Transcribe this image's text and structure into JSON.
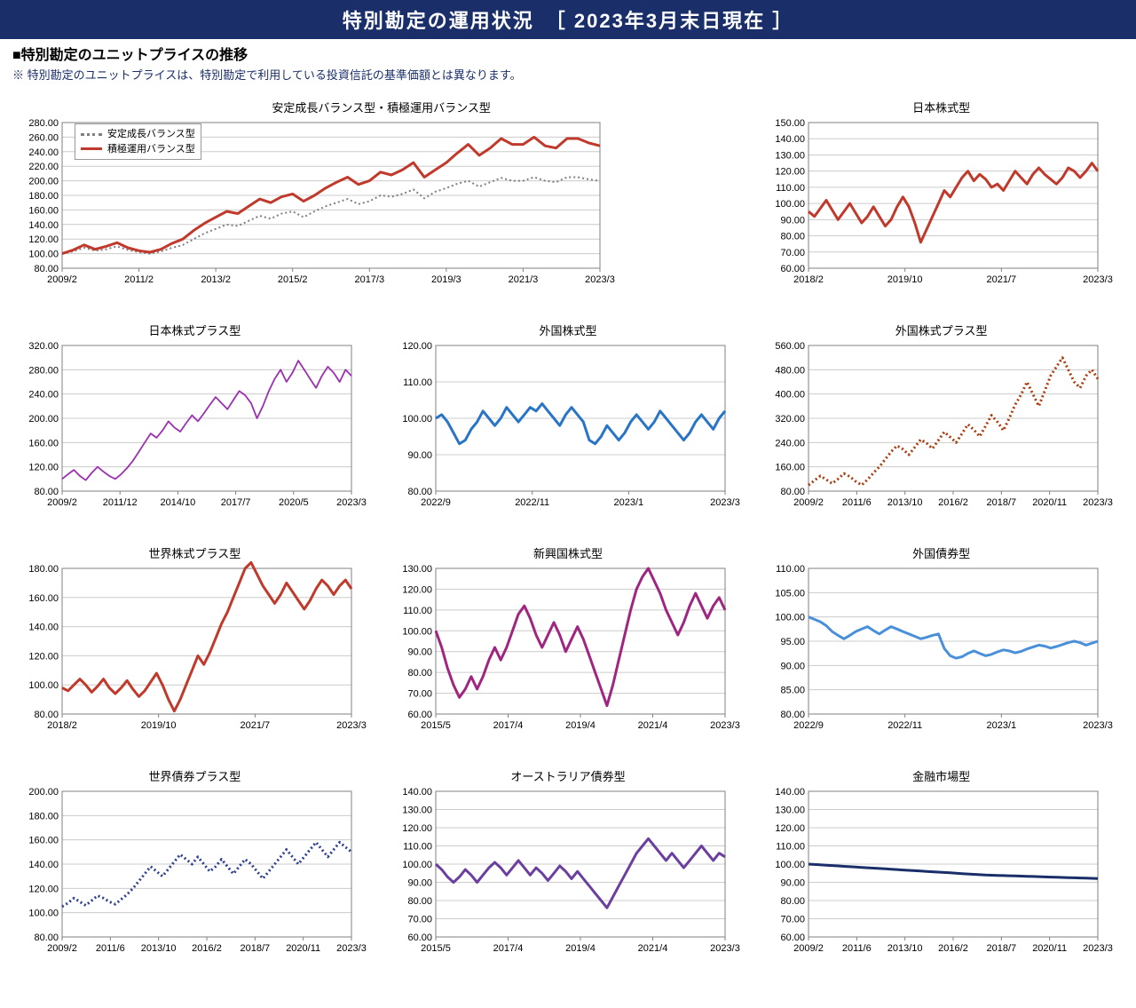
{
  "banner": "特別勘定の運用状況　［ 2023年3月末日現在 ］",
  "subhead": "■特別勘定のユニットプライスの推移",
  "note": "※ 特別勘定のユニットプライスは、特別勘定で利用している投資信託の基準価額とは異なります。",
  "colors": {
    "banner_bg": "#1a2f6a",
    "grid": "#cccccc",
    "axis": "#808080"
  },
  "charts": [
    {
      "id": "c1",
      "title": "安定成長バランス型・積極運用バランス型",
      "span": 2,
      "ylim": [
        80,
        280
      ],
      "ystep": 20,
      "xticks": [
        "2009/2",
        "2011/2",
        "2013/2",
        "2015/2",
        "2017/3",
        "2019/3",
        "2021/3",
        "2023/3"
      ],
      "legend": [
        {
          "label": "安定成長バランス型",
          "color": "#7f7f7f",
          "style": "dotted"
        },
        {
          "label": "積極運用バランス型",
          "color": "#c0392b",
          "style": "solid"
        }
      ],
      "series": [
        {
          "color": "#7f7f7f",
          "width": 2,
          "style": "dotted",
          "data": [
            100,
            103,
            108,
            104,
            106,
            110,
            105,
            102,
            100,
            103,
            108,
            112,
            120,
            128,
            134,
            140,
            138,
            145,
            152,
            148,
            155,
            158,
            150,
            158,
            165,
            170,
            175,
            168,
            172,
            180,
            178,
            182,
            188,
            176,
            185,
            190,
            196,
            200,
            192,
            198,
            204,
            200,
            200,
            205,
            200,
            198,
            205,
            205,
            202,
            200
          ]
        },
        {
          "color": "#c0392b",
          "width": 3,
          "style": "solid",
          "data": [
            100,
            105,
            112,
            106,
            110,
            115,
            108,
            104,
            102,
            106,
            114,
            120,
            132,
            142,
            150,
            158,
            155,
            165,
            175,
            170,
            178,
            182,
            172,
            180,
            190,
            198,
            205,
            195,
            200,
            212,
            208,
            215,
            225,
            205,
            215,
            225,
            238,
            250,
            235,
            245,
            258,
            250,
            250,
            260,
            248,
            245,
            258,
            258,
            252,
            248
          ]
        }
      ]
    },
    {
      "id": "c2",
      "title": "日本株式型",
      "span": 1,
      "ylim": [
        60,
        150
      ],
      "ystep": 10,
      "xticks": [
        "2018/2",
        "2019/10",
        "2021/7",
        "2023/3"
      ],
      "series": [
        {
          "color": "#c0392b",
          "width": 3,
          "style": "solid",
          "data": [
            95,
            92,
            97,
            102,
            96,
            90,
            95,
            100,
            94,
            88,
            92,
            98,
            92,
            86,
            90,
            98,
            104,
            98,
            88,
            76,
            84,
            92,
            100,
            108,
            104,
            110,
            116,
            120,
            114,
            118,
            115,
            110,
            112,
            108,
            114,
            120,
            116,
            112,
            118,
            122,
            118,
            115,
            112,
            116,
            122,
            120,
            116,
            120,
            125,
            120
          ]
        }
      ]
    },
    {
      "id": "c3",
      "title": "日本株式プラス型",
      "span": 1,
      "ylim": [
        80,
        320
      ],
      "ystep": 40,
      "xticks": [
        "2009/2",
        "2011/12",
        "2014/10",
        "2017/7",
        "2020/5",
        "2023/3"
      ],
      "series": [
        {
          "color": "#9b30b0",
          "width": 1.8,
          "style": "solid",
          "data": [
            100,
            108,
            115,
            105,
            98,
            110,
            120,
            112,
            105,
            100,
            108,
            118,
            130,
            145,
            160,
            175,
            168,
            180,
            195,
            185,
            178,
            192,
            205,
            195,
            208,
            222,
            235,
            225,
            215,
            230,
            245,
            238,
            225,
            200,
            220,
            245,
            265,
            280,
            260,
            275,
            295,
            280,
            265,
            250,
            270,
            285,
            275,
            260,
            280,
            270
          ]
        }
      ]
    },
    {
      "id": "c4",
      "title": "外国株式型",
      "span": 1,
      "ylim": [
        80,
        120
      ],
      "ystep": 10,
      "xticks": [
        "2022/9",
        "2022/11",
        "2023/1",
        "2023/3"
      ],
      "series": [
        {
          "color": "#2874c6",
          "width": 3,
          "style": "solid",
          "data": [
            100,
            101,
            99,
            96,
            93,
            94,
            97,
            99,
            102,
            100,
            98,
            100,
            103,
            101,
            99,
            101,
            103,
            102,
            104,
            102,
            100,
            98,
            101,
            103,
            101,
            99,
            94,
            93,
            95,
            98,
            96,
            94,
            96,
            99,
            101,
            99,
            97,
            99,
            102,
            100,
            98,
            96,
            94,
            96,
            99,
            101,
            99,
            97,
            100,
            102
          ]
        }
      ]
    },
    {
      "id": "c5",
      "title": "外国株式プラス型",
      "span": 1,
      "ylim": [
        80,
        560
      ],
      "ystep": 80,
      "xticks": [
        "2009/2",
        "2011/6",
        "2013/10",
        "2016/2",
        "2018/7",
        "2020/11",
        "2023/3"
      ],
      "series": [
        {
          "color": "#aa3c0c",
          "width": 3,
          "style": "dotted",
          "data": [
            100,
            115,
            130,
            118,
            105,
            120,
            138,
            128,
            112,
            100,
            118,
            140,
            160,
            185,
            210,
            230,
            218,
            200,
            225,
            250,
            238,
            220,
            248,
            275,
            258,
            240,
            270,
            300,
            282,
            260,
            295,
            330,
            308,
            280,
            320,
            365,
            398,
            440,
            400,
            360,
            410,
            460,
            490,
            520,
            480,
            440,
            420,
            460,
            480,
            450
          ]
        }
      ]
    },
    {
      "id": "c6",
      "title": "世界株式プラス型",
      "span": 1,
      "ylim": [
        80,
        180
      ],
      "ystep": 20,
      "xticks": [
        "2018/2",
        "2019/10",
        "2021/7",
        "2023/3"
      ],
      "series": [
        {
          "color": "#c0392b",
          "width": 3,
          "style": "solid",
          "data": [
            98,
            96,
            100,
            104,
            100,
            95,
            99,
            104,
            98,
            94,
            98,
            103,
            97,
            92,
            96,
            102,
            108,
            100,
            90,
            82,
            90,
            100,
            110,
            120,
            114,
            122,
            132,
            142,
            150,
            160,
            170,
            180,
            184,
            176,
            168,
            162,
            156,
            162,
            170,
            164,
            158,
            152,
            158,
            166,
            172,
            168,
            162,
            168,
            172,
            166
          ]
        }
      ]
    },
    {
      "id": "c7",
      "title": "新興国株式型",
      "span": 1,
      "ylim": [
        60,
        130
      ],
      "ystep": 10,
      "xticks": [
        "2015/5",
        "2017/4",
        "2019/4",
        "2021/4",
        "2023/3"
      ],
      "series": [
        {
          "color": "#a02580",
          "width": 3,
          "style": "solid",
          "data": [
            100,
            92,
            82,
            74,
            68,
            72,
            78,
            72,
            78,
            86,
            92,
            86,
            92,
            100,
            108,
            112,
            106,
            98,
            92,
            98,
            104,
            98,
            90,
            96,
            102,
            96,
            88,
            80,
            72,
            64,
            74,
            86,
            98,
            110,
            120,
            126,
            130,
            124,
            118,
            110,
            104,
            98,
            104,
            112,
            118,
            112,
            106,
            112,
            116,
            110
          ]
        }
      ]
    },
    {
      "id": "c8",
      "title": "外国債券型",
      "span": 1,
      "ylim": [
        80,
        110
      ],
      "ystep": 5,
      "xticks": [
        "2022/9",
        "2022/11",
        "2023/1",
        "2023/3"
      ],
      "series": [
        {
          "color": "#4a90d9",
          "width": 3,
          "style": "solid",
          "data": [
            100,
            99.5,
            99,
            98.2,
            97,
            96.2,
            95.5,
            96.2,
            97,
            97.5,
            98,
            97.2,
            96.5,
            97.3,
            98,
            97.5,
            97,
            96.5,
            96,
            95.5,
            95.8,
            96.2,
            96.5,
            93.5,
            92,
            91.5,
            91.8,
            92.5,
            93,
            92.5,
            92,
            92.3,
            92.8,
            93.2,
            93,
            92.6,
            92.9,
            93.4,
            93.8,
            94.2,
            94,
            93.6,
            93.9,
            94.3,
            94.7,
            95,
            94.7,
            94.2,
            94.6,
            95
          ]
        }
      ]
    },
    {
      "id": "c9",
      "title": "世界債券プラス型",
      "span": 1,
      "ylim": [
        80,
        200
      ],
      "ystep": 20,
      "xticks": [
        "2009/2",
        "2011/6",
        "2013/10",
        "2016/2",
        "2018/7",
        "2020/11",
        "2023/3"
      ],
      "series": [
        {
          "color": "#2c3e8f",
          "width": 3,
          "style": "dotted",
          "data": [
            105,
            108,
            112,
            109,
            106,
            110,
            114,
            112,
            109,
            107,
            111,
            115,
            120,
            126,
            132,
            138,
            134,
            130,
            136,
            142,
            148,
            144,
            140,
            146,
            140,
            134,
            138,
            144,
            138,
            132,
            138,
            144,
            140,
            134,
            128,
            134,
            140,
            146,
            152,
            146,
            140,
            146,
            152,
            158,
            152,
            146,
            152,
            158,
            154,
            150
          ]
        }
      ]
    },
    {
      "id": "c10",
      "title": "オーストラリア債券型",
      "span": 1,
      "ylim": [
        60,
        140
      ],
      "ystep": 10,
      "xticks": [
        "2015/5",
        "2017/4",
        "2019/4",
        "2021/4",
        "2023/3"
      ],
      "series": [
        {
          "color": "#6b3fa0",
          "width": 3,
          "style": "solid",
          "data": [
            100,
            97,
            93,
            90,
            93,
            97,
            94,
            90,
            94,
            98,
            101,
            98,
            94,
            98,
            102,
            98,
            94,
            98,
            95,
            91,
            95,
            99,
            96,
            92,
            96,
            92,
            88,
            84,
            80,
            76,
            82,
            88,
            94,
            100,
            106,
            110,
            114,
            110,
            106,
            102,
            106,
            102,
            98,
            102,
            106,
            110,
            106,
            102,
            106,
            104
          ]
        }
      ]
    },
    {
      "id": "c11",
      "title": "金融市場型",
      "span": 1,
      "ylim": [
        60,
        140
      ],
      "ystep": 10,
      "xticks": [
        "2009/2",
        "2011/6",
        "2013/10",
        "2016/2",
        "2018/7",
        "2020/11",
        "2023/3"
      ],
      "series": [
        {
          "color": "#1a2f6a",
          "width": 3,
          "style": "solid",
          "data": [
            100,
            99.8,
            99.6,
            99.4,
            99.2,
            99,
            98.8,
            98.6,
            98.4,
            98.2,
            98,
            97.8,
            97.6,
            97.4,
            97.2,
            97,
            96.8,
            96.6,
            96.4,
            96.2,
            96,
            95.8,
            95.6,
            95.4,
            95.2,
            95,
            94.8,
            94.6,
            94.4,
            94.2,
            94,
            93.9,
            93.8,
            93.7,
            93.6,
            93.5,
            93.4,
            93.3,
            93.2,
            93.1,
            93,
            92.9,
            92.8,
            92.7,
            92.6,
            92.5,
            92.4,
            92.3,
            92.2,
            92.1
          ]
        }
      ]
    }
  ]
}
